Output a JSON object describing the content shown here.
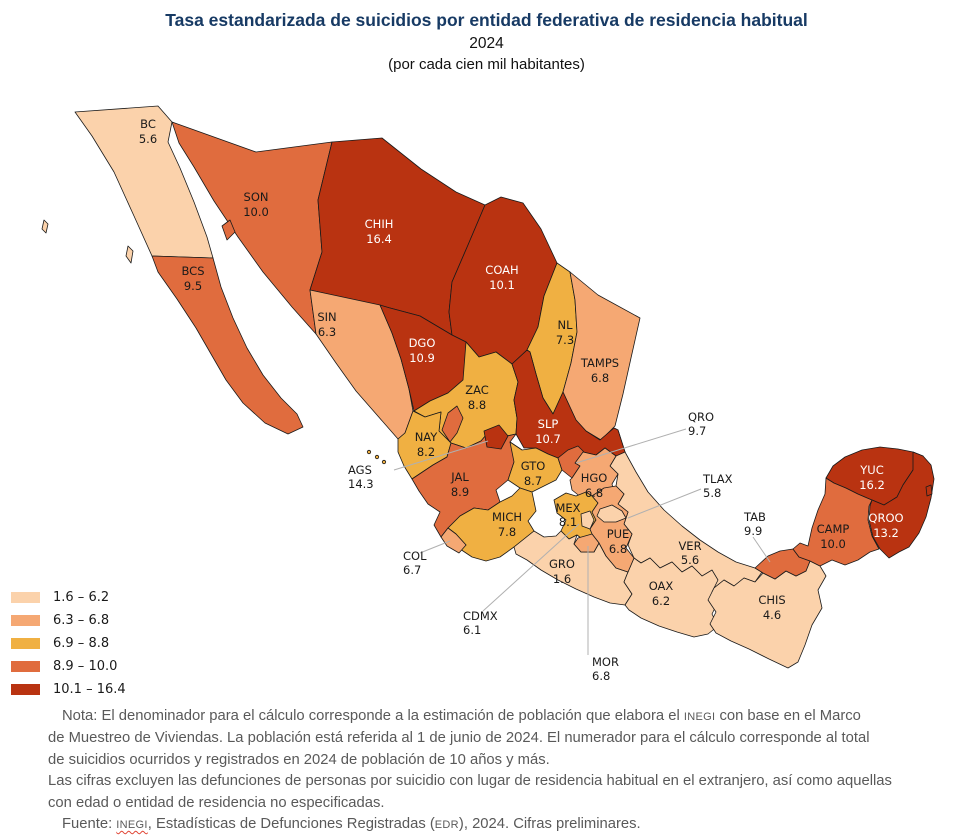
{
  "header": {
    "title": "Tasa estandarizada de suicidios por entidad federativa de residencia habitual",
    "subtitle": "2024",
    "units_line": "(por cada cien mil habitantes)"
  },
  "accent_colors": {
    "title_text": "#173a64",
    "note_text": "#595959",
    "map_border": "#1a1a1a",
    "leader_line": "#b0b0b0"
  },
  "chart_data": {
    "type": "heatmap",
    "subtype": "choropleth-map",
    "geography": "Mexico, 32 entidades federativas",
    "title": "Tasa estandarizada de suicidios por entidad federativa de residencia habitual",
    "year": "2024",
    "units": "por cada cien mil habitantes",
    "value_min": 1.6,
    "value_max": 16.4,
    "legend_position": "bottom-left",
    "classes": [
      {
        "label": "1.6 – 6.2",
        "color": "#fbd2ab"
      },
      {
        "label": "6.3 – 6.8",
        "color": "#f5a873"
      },
      {
        "label": "6.9 – 8.8",
        "color": "#f0b042"
      },
      {
        "label": "8.9 – 10.0",
        "color": "#e06c3e"
      },
      {
        "label": "10.1 – 16.4",
        "color": "#b93311"
      }
    ],
    "states": [
      {
        "code": "BC",
        "value": 5.6,
        "value_label": "5.6",
        "class": 0
      },
      {
        "code": "BCS",
        "value": 9.5,
        "value_label": "9.5",
        "class": 3
      },
      {
        "code": "SON",
        "value": 10.0,
        "value_label": "10.0",
        "class": 3
      },
      {
        "code": "SIN",
        "value": 6.3,
        "value_label": "6.3",
        "class": 1
      },
      {
        "code": "CHIH",
        "value": 16.4,
        "value_label": "16.4",
        "class": 4
      },
      {
        "code": "COAH",
        "value": 10.1,
        "value_label": "10.1",
        "class": 4
      },
      {
        "code": "NL",
        "value": 7.3,
        "value_label": "7.3",
        "class": 2
      },
      {
        "code": "TAMPS",
        "value": 6.8,
        "value_label": "6.8",
        "class": 1
      },
      {
        "code": "DGO",
        "value": 10.9,
        "value_label": "10.9",
        "class": 4
      },
      {
        "code": "ZAC",
        "value": 8.8,
        "value_label": "8.8",
        "class": 2
      },
      {
        "code": "SLP",
        "value": 10.7,
        "value_label": "10.7",
        "class": 4
      },
      {
        "code": "AGS",
        "value": 14.3,
        "value_label": "14.3",
        "class": 4
      },
      {
        "code": "NAY",
        "value": 8.2,
        "value_label": "8.2",
        "class": 2
      },
      {
        "code": "JAL",
        "value": 8.9,
        "value_label": "8.9",
        "class": 3
      },
      {
        "code": "GTO",
        "value": 8.7,
        "value_label": "8.7",
        "class": 2
      },
      {
        "code": "QRO",
        "value": 9.7,
        "value_label": "9.7",
        "class": 3
      },
      {
        "code": "HGO",
        "value": 6.8,
        "value_label": "6.8",
        "class": 1
      },
      {
        "code": "MICH",
        "value": 7.8,
        "value_label": "7.8",
        "class": 2
      },
      {
        "code": "COL",
        "value": 6.7,
        "value_label": "6.7",
        "class": 1
      },
      {
        "code": "MEX",
        "value": 8.1,
        "value_label": "8.1",
        "class": 2
      },
      {
        "code": "CDMX",
        "value": 6.1,
        "value_label": "6.1",
        "class": 0
      },
      {
        "code": "TLAX",
        "value": 5.8,
        "value_label": "5.8",
        "class": 0
      },
      {
        "code": "MOR",
        "value": 6.8,
        "value_label": "6.8",
        "class": 1
      },
      {
        "code": "PUE",
        "value": 6.8,
        "value_label": "6.8",
        "class": 1
      },
      {
        "code": "VER",
        "value": 5.6,
        "value_label": "5.6",
        "class": 0
      },
      {
        "code": "GRO",
        "value": 1.6,
        "value_label": "1.6",
        "class": 0
      },
      {
        "code": "OAX",
        "value": 6.2,
        "value_label": "6.2",
        "class": 0
      },
      {
        "code": "TAB",
        "value": 9.9,
        "value_label": "9.9",
        "class": 3
      },
      {
        "code": "CHIS",
        "value": 4.6,
        "value_label": "4.6",
        "class": 0
      },
      {
        "code": "CAMP",
        "value": 10.0,
        "value_label": "10.0",
        "class": 3
      },
      {
        "code": "YUC",
        "value": 16.2,
        "value_label": "16.2",
        "class": 4
      },
      {
        "code": "QROO",
        "value": 13.2,
        "value_label": "13.2",
        "class": 4
      }
    ]
  },
  "notes": {
    "lines": [
      [
        {
          "t": "Nota: El denominador para el cálculo corresponde a la estimación de población que elabora el "
        },
        {
          "t": "INEGI",
          "caps": true
        },
        {
          "t": " con base en el Marco"
        }
      ],
      [
        {
          "t": "de Muestreo de Viviendas. La población está referida al 1 de junio de 2024. El numerador para el cálculo corresponde al total"
        }
      ],
      [
        {
          "t": "de suicidios ocurridos y registrados en 2024 de población de 10 años y más."
        }
      ],
      [
        {
          "t": "Las cifras excluyen las defunciones de personas por suicidio con lugar de residencia habitual en el extranjero, así como aquellas"
        }
      ],
      [
        {
          "t": "con edad o entidad de residencia no especificadas."
        }
      ],
      [
        {
          "t": "Fuente: "
        },
        {
          "t": "INEGI",
          "caps": true,
          "squiggle": true
        },
        {
          "t": ", Estadísticas de Defunciones Registradas ("
        },
        {
          "t": "EDR",
          "caps": true
        },
        {
          "t": "), 2024. Cifras preliminares."
        }
      ]
    ],
    "indented_lines": [
      0,
      5
    ]
  }
}
